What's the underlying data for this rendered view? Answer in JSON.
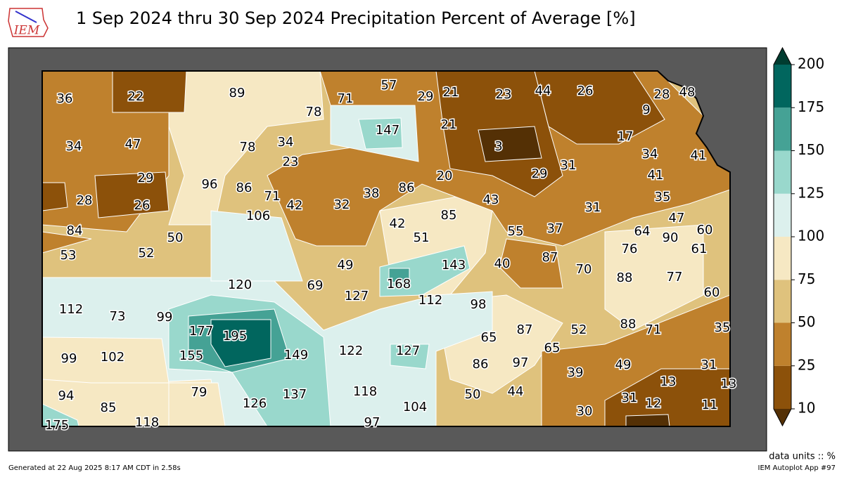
{
  "header": {
    "title": "1 Sep 2024 thru 30 Sep 2024 Precipitation Percent of Average [%]",
    "logo": "IEM"
  },
  "map": {
    "stations": [
      36,
      22,
      89,
      71,
      57,
      29,
      21,
      23,
      44,
      26,
      28,
      48,
      78,
      9,
      147,
      21,
      34,
      47,
      78,
      34,
      3,
      17,
      34,
      41,
      23,
      29,
      20,
      29,
      31,
      41,
      96,
      86,
      71,
      38,
      86,
      28,
      26,
      42,
      32,
      43,
      31,
      35,
      106,
      85,
      47,
      84,
      50,
      42,
      51,
      55,
      37,
      64,
      90,
      60,
      53,
      52,
      76,
      61,
      49,
      143,
      40,
      87,
      70,
      120,
      69,
      168,
      88,
      77,
      112,
      73,
      99,
      127,
      112,
      98,
      60,
      177,
      195,
      87,
      52,
      88,
      71,
      35,
      65,
      65,
      149,
      122,
      127,
      99,
      102,
      155,
      86,
      97,
      49,
      31,
      39,
      13,
      13,
      79,
      137,
      118,
      50,
      44,
      94,
      126,
      104,
      31,
      12,
      11,
      85,
      30,
      175,
      118,
      97
    ]
  },
  "colorbar": {
    "levels": [
      10,
      25,
      50,
      75,
      100,
      125,
      150,
      175,
      200
    ],
    "colors": [
      "#8c510a",
      "#bf812d",
      "#dfc27d",
      "#f6e8c3",
      "#dcf0ed",
      "#99d8cc",
      "#45a295",
      "#01665e"
    ],
    "under": "#543005",
    "over": "#003c30"
  },
  "footer": {
    "units": "data units :: %",
    "generated": "Generated at 22 Aug 2025 8:17 AM CDT in 2.58s",
    "app": "IEM Autoplot App #97"
  }
}
